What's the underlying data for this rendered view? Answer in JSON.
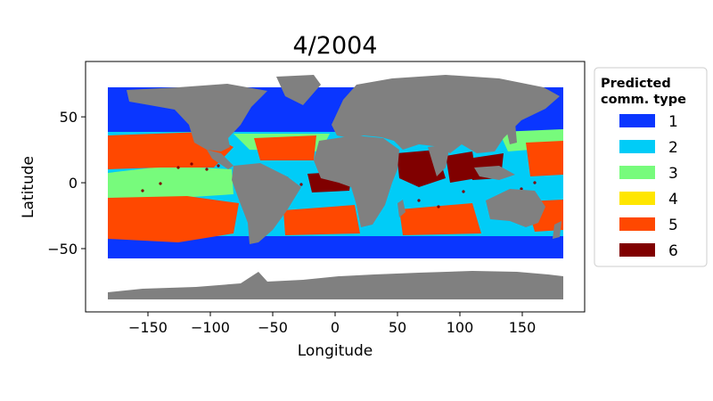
{
  "title": "4/2004",
  "xlabel": "Longitude",
  "ylabel": "Latitude",
  "xlim": [
    -200,
    200
  ],
  "ylim": [
    -98,
    92
  ],
  "xticks": [
    {
      "value": -150,
      "label": "−150"
    },
    {
      "value": -100,
      "label": "−100"
    },
    {
      "value": -50,
      "label": "−50"
    },
    {
      "value": 0,
      "label": "0"
    },
    {
      "value": 50,
      "label": "50"
    },
    {
      "value": 100,
      "label": "100"
    },
    {
      "value": 150,
      "label": "150"
    }
  ],
  "yticks": [
    {
      "value": 50,
      "label": "50"
    },
    {
      "value": 0,
      "label": "0"
    },
    {
      "value": -50,
      "label": "−50"
    }
  ],
  "legend": {
    "title_line1": "Predicted",
    "title_line2": "comm. type",
    "placement": "outside-right",
    "items": [
      {
        "label": "1",
        "color": "#0a36ff"
      },
      {
        "label": "2",
        "color": "#00ccf7"
      },
      {
        "label": "3",
        "color": "#77fb7c"
      },
      {
        "label": "4",
        "color": "#ffe600"
      },
      {
        "label": "5",
        "color": "#ff4800"
      },
      {
        "label": "6",
        "color": "#800000"
      }
    ]
  },
  "colors": {
    "land": "#808080",
    "ocean_background": "#ffffff"
  }
}
